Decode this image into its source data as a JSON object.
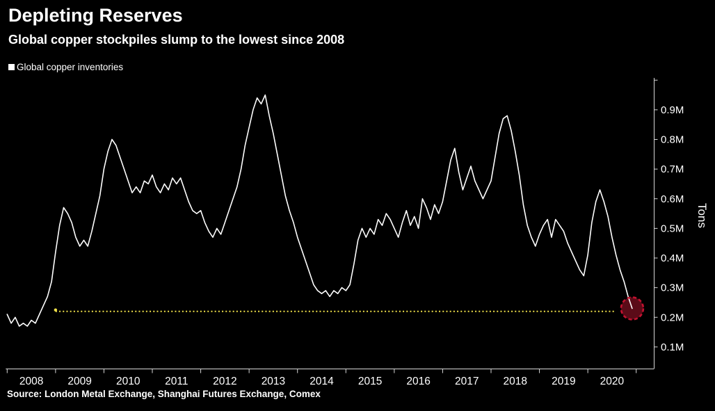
{
  "header": {
    "title": "Depleting Reserves",
    "subtitle": "Global copper stockpiles slump to the lowest since 2008"
  },
  "legend": {
    "label": "Global copper inventories",
    "swatch_color": "#ffffff"
  },
  "footer": {
    "source": "Source: London Metal Exchange, Shanghai Futures Exchange, Comex"
  },
  "chart_data": {
    "type": "line",
    "title": "Depleting Reserves",
    "subtitle": "Global copper stockpiles slump to the lowest since 2008",
    "y_axis_title": "Tons",
    "grid": false,
    "legend_position": "top-left",
    "background_color": "#000000",
    "axis_color": "#d9d9d9",
    "x_range": [
      "2008-01",
      "2020-12"
    ],
    "x_interval": "monthly",
    "x_tick_labels": [
      "2008",
      "2009",
      "2010",
      "2011",
      "2012",
      "2013",
      "2014",
      "2015",
      "2016",
      "2017",
      "2018",
      "2019",
      "2020"
    ],
    "y_tick_values": [
      0.1,
      0.2,
      0.3,
      0.4,
      0.5,
      0.6,
      0.7,
      0.8,
      0.9,
      1.0
    ],
    "y_tick_labels": [
      "0.1M",
      "0.2M",
      "0.3M",
      "0.4M",
      "0.5M",
      "0.6M",
      "0.7M",
      "0.8M",
      "0.9M",
      ""
    ],
    "ylim": [
      0.03,
      1.0
    ],
    "series": [
      {
        "name": "Global copper inventories",
        "color": "#ffffff",
        "unit": "millions of tons",
        "values": [
          0.21,
          0.18,
          0.2,
          0.17,
          0.18,
          0.17,
          0.19,
          0.18,
          0.21,
          0.24,
          0.27,
          0.32,
          0.42,
          0.51,
          0.57,
          0.55,
          0.52,
          0.47,
          0.44,
          0.46,
          0.44,
          0.49,
          0.55,
          0.61,
          0.7,
          0.76,
          0.8,
          0.78,
          0.74,
          0.7,
          0.66,
          0.62,
          0.64,
          0.62,
          0.66,
          0.65,
          0.68,
          0.64,
          0.62,
          0.65,
          0.63,
          0.67,
          0.65,
          0.67,
          0.63,
          0.59,
          0.56,
          0.55,
          0.56,
          0.52,
          0.49,
          0.47,
          0.5,
          0.48,
          0.52,
          0.56,
          0.6,
          0.64,
          0.7,
          0.78,
          0.84,
          0.9,
          0.94,
          0.92,
          0.95,
          0.88,
          0.82,
          0.75,
          0.68,
          0.61,
          0.56,
          0.52,
          0.47,
          0.43,
          0.39,
          0.35,
          0.31,
          0.29,
          0.28,
          0.29,
          0.27,
          0.29,
          0.28,
          0.3,
          0.29,
          0.31,
          0.38,
          0.46,
          0.5,
          0.47,
          0.5,
          0.48,
          0.53,
          0.51,
          0.55,
          0.53,
          0.5,
          0.47,
          0.52,
          0.56,
          0.51,
          0.54,
          0.5,
          0.6,
          0.57,
          0.53,
          0.58,
          0.55,
          0.59,
          0.66,
          0.73,
          0.77,
          0.69,
          0.63,
          0.67,
          0.71,
          0.66,
          0.63,
          0.6,
          0.63,
          0.66,
          0.74,
          0.82,
          0.87,
          0.88,
          0.83,
          0.76,
          0.68,
          0.58,
          0.51,
          0.47,
          0.44,
          0.48,
          0.51,
          0.53,
          0.47,
          0.53,
          0.51,
          0.49,
          0.45,
          0.42,
          0.39,
          0.36,
          0.34,
          0.41,
          0.52,
          0.59,
          0.63,
          0.59,
          0.54,
          0.47,
          0.41,
          0.36,
          0.32,
          0.27,
          0.23
        ]
      }
    ],
    "reference_line": {
      "value": 0.22,
      "from_month": 12,
      "to_month": 151,
      "color": "#f0e14a",
      "style": "dotted"
    },
    "highlight_circle": {
      "month": 155,
      "value": 0.23,
      "radius": 16,
      "stroke": "#c41230",
      "fill": "#6b0d1c",
      "style": "dashed"
    }
  }
}
